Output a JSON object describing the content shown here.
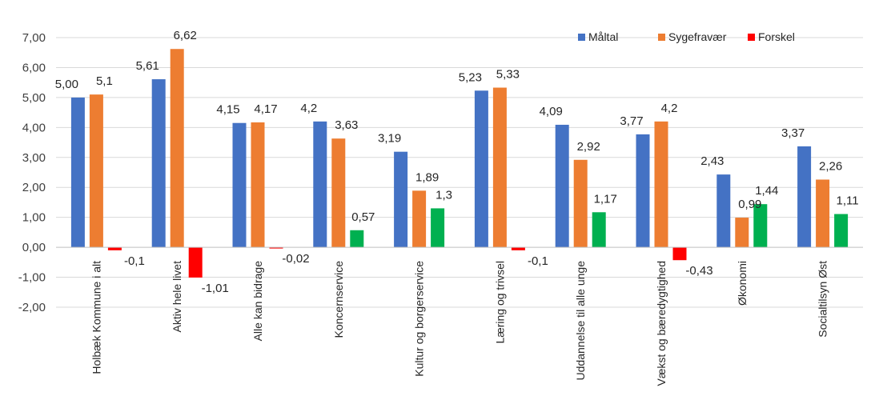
{
  "chart_data": {
    "type": "bar",
    "categories": [
      "Holbæk Kommune i alt",
      "Aktiv hele livet",
      "Alle kan bidrage",
      "Koncernservice",
      "Kultur og borgerservice",
      "Læring og trivsel",
      "Uddannelse til alle unge",
      "Vækst og bæredygtighed",
      "Økonomi",
      "Socialtilsyn Øst"
    ],
    "series": [
      {
        "name": "Måltal",
        "color": "#4472C4",
        "values": [
          5.0,
          5.61,
          4.15,
          4.2,
          3.19,
          5.23,
          4.09,
          3.77,
          2.43,
          3.37
        ],
        "labels": [
          "5,00",
          "5,61",
          "4,15",
          "4,2",
          "3,19",
          "5,23",
          "4,09",
          "3,77",
          "2,43",
          "3,37"
        ]
      },
      {
        "name": "Sygefravær",
        "color": "#ED7D31",
        "values": [
          5.1,
          6.62,
          4.17,
          3.63,
          1.89,
          5.33,
          2.92,
          4.2,
          0.99,
          2.26
        ],
        "labels": [
          "5,1",
          "6,62",
          "4,17",
          "3,63",
          "1,89",
          "5,33",
          "2,92",
          "4,2",
          "0,99",
          "2,26"
        ]
      },
      {
        "name": "Forskel",
        "colors": {
          "negative": "#FF0000",
          "positive": "#00B050"
        },
        "values": [
          -0.1,
          -1.01,
          -0.02,
          0.57,
          1.3,
          -0.1,
          1.17,
          -0.43,
          1.44,
          1.11
        ],
        "labels": [
          "-0,1",
          "-1,01",
          "-0,02",
          "0,57",
          "1,3",
          "-0,1",
          "1,17",
          "-0,43",
          "1,44",
          "1,11"
        ]
      }
    ],
    "ylim": [
      -2,
      7
    ],
    "yticks": [
      7,
      6,
      5,
      4,
      3,
      2,
      1,
      0,
      -1,
      -2
    ],
    "ytick_labels": [
      "7,00",
      "6,00",
      "5,00",
      "4,00",
      "3,00",
      "2,00",
      "1,00",
      "0,00",
      "-1,00",
      "-2,00"
    ],
    "legend": {
      "position": "top-right",
      "entries": [
        {
          "name": "Måltal",
          "color": "#4472C4"
        },
        {
          "name": "Sygefravær",
          "color": "#ED7D31"
        },
        {
          "name": "Forskel",
          "color": "#FF0000"
        }
      ]
    },
    "grid": true,
    "xlabel": "",
    "ylabel": "",
    "title": ""
  }
}
